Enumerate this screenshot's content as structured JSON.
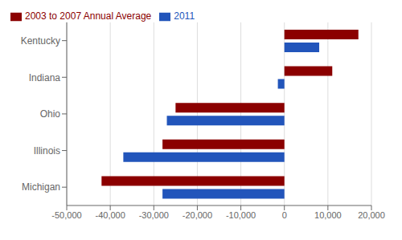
{
  "chart_data": {
    "type": "bar",
    "orientation": "horizontal",
    "categories": [
      "Kentucky",
      "Indiana",
      "Ohio",
      "Illinois",
      "Michigan"
    ],
    "series": [
      {
        "name": "2003 to 2007 Annual Average",
        "color": "#8B0000",
        "values": [
          17000,
          11000,
          -25000,
          -28000,
          -42000
        ]
      },
      {
        "name": "2011",
        "color": "#2255BB",
        "values": [
          8000,
          -1500,
          -27000,
          -37000,
          -28000
        ]
      }
    ],
    "xlim": [
      -50000,
      20000
    ],
    "xticks": [
      {
        "value": -50000,
        "label": "-50,000"
      },
      {
        "value": -40000,
        "label": "-40,000"
      },
      {
        "value": -30000,
        "label": "-30,000"
      },
      {
        "value": -20000,
        "label": "-20,000"
      },
      {
        "value": -10000,
        "label": "-10,000"
      },
      0,
      {
        "value": 10000,
        "label": "10,000"
      },
      {
        "value": 20000,
        "label": "20,000"
      }
    ],
    "grid": true,
    "legend": "upper left"
  }
}
